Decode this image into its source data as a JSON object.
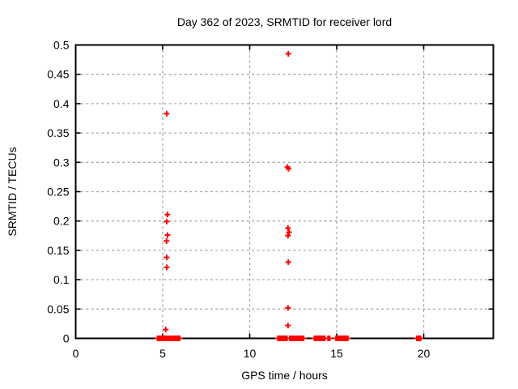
{
  "figure": {
    "background": "#ffffff",
    "text_color": "#000000"
  },
  "chart_data": {
    "type": "scatter",
    "title": "Day 362 of 2023, SRMTID for receiver lord",
    "xlabel": "GPS time / hours",
    "ylabel": "SRMTID / TECUs",
    "xlim": [
      0,
      24
    ],
    "ylim": [
      0,
      0.5
    ],
    "xticks": [
      0,
      5,
      10,
      15,
      20
    ],
    "yticks": [
      0,
      0.05,
      0.1,
      0.15,
      0.2,
      0.25,
      0.3,
      0.35,
      0.4,
      0.45,
      0.5
    ],
    "grid": true,
    "grid_style": "dashed",
    "grid_color": "#a8a8a8",
    "axis_color": "#000000",
    "legend": "none",
    "marker": {
      "shape": "plus",
      "color": "#ff0000",
      "size": 7,
      "stroke_width": 2
    },
    "series": [
      {
        "name": "SRMTID",
        "color": "#ff0000",
        "points": [
          [
            5.23,
            0.383
          ],
          [
            5.27,
            0.211
          ],
          [
            5.23,
            0.199
          ],
          [
            5.28,
            0.176
          ],
          [
            5.22,
            0.166
          ],
          [
            5.23,
            0.138
          ],
          [
            5.23,
            0.121
          ],
          [
            5.17,
            0.015
          ],
          [
            12.22,
            0.485
          ],
          [
            12.17,
            0.292
          ],
          [
            12.23,
            0.289
          ],
          [
            12.2,
            0.188
          ],
          [
            12.26,
            0.181
          ],
          [
            12.2,
            0.175
          ],
          [
            12.22,
            0.13
          ],
          [
            12.2,
            0.052
          ],
          [
            12.2,
            0.022
          ]
        ],
        "zero_value_runs_hours": [
          [
            4.7,
            5.44,
            0.045
          ],
          [
            5.47,
            5.47,
            1
          ],
          [
            5.57,
            5.75,
            0.045
          ],
          [
            5.8,
            5.98,
            0.045
          ],
          [
            11.62,
            12.16,
            0.04
          ],
          [
            12.3,
            13.1,
            0.04
          ],
          [
            13.72,
            14.32,
            0.04
          ],
          [
            14.5,
            14.6,
            0.05
          ],
          [
            14.96,
            15.66,
            0.04
          ],
          [
            19.6,
            19.82,
            0.055
          ]
        ]
      }
    ]
  }
}
